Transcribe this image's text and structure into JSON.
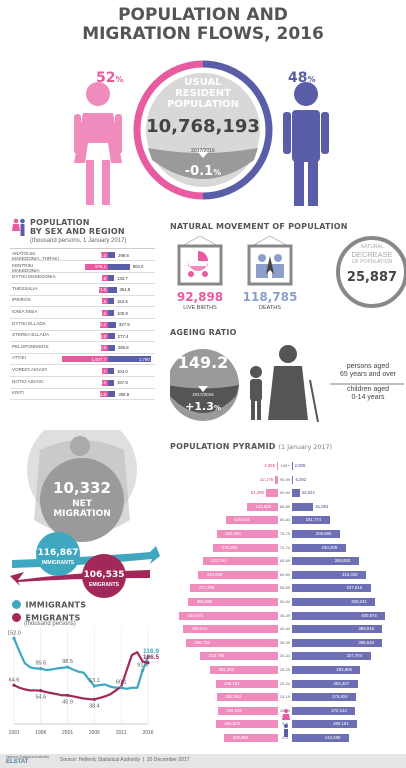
{
  "title_line1": "POPULATION AND",
  "title_line2": "MIGRATION FLOWS, 2016",
  "female_pct": "52",
  "male_pct": "48",
  "pct_sign": "%",
  "usual": {
    "line1": "USUAL",
    "line2": "RESIDENT",
    "line3": "POPULATION",
    "value": "10,768,193",
    "period": "2017/2016",
    "change": "-0.1",
    "change_unit": "%"
  },
  "sex_region": {
    "title_line1": "POPULATION",
    "title_line2": "BY SEX AND REGION",
    "subtitle": "(thousand persons, 1 January 2017)",
    "rows": [
      {
        "region": "ANATOLIKI MAKEDONIA, THRAKI",
        "female": "304.2",
        "male": "298.6",
        "f": 304.2,
        "m": 298.6
      },
      {
        "region": "KENTRIKI MAKEDONIA",
        "female": "976.1",
        "male": "904.0",
        "f": 976.1,
        "m": 904.0
      },
      {
        "region": "DYTIKI MAKEDONIA",
        "female": "137.8",
        "male": "133.7",
        "f": 137.8,
        "m": 133.7
      },
      {
        "region": "THESSALIA",
        "female": "371.5",
        "male": "354.8",
        "f": 371.5,
        "m": 354.8
      },
      {
        "region": "IPEIROS",
        "female": "171.5",
        "male": "163.5",
        "f": 171.5,
        "m": 163.5
      },
      {
        "region": "IONIA NISIA",
        "female": "104.5",
        "male": "100.9",
        "f": 104.5,
        "m": 100.9
      },
      {
        "region": "DYTIKI ELLADA",
        "female": "335.2",
        "male": "327.9",
        "f": 335.2,
        "m": 327.9
      },
      {
        "region": "STEREA ELLADA",
        "female": "278.8",
        "male": "277.4",
        "f": 278.8,
        "m": 277.4
      },
      {
        "region": "PELOPONNISOS",
        "female": "290.8",
        "male": "286.8",
        "f": 290.8,
        "m": 286.8
      },
      {
        "region": "ATTIKI",
        "female": "1,937.7",
        "male": "1,790.9",
        "f": 1937.7,
        "m": 1790.9
      },
      {
        "region": "VOREIO AIGAIO",
        "female": "95.7",
        "male": "104.0",
        "f": 95.7,
        "m": 104.0
      },
      {
        "region": "NOTIO AIGAIO",
        "female": "170.6",
        "male": "167.9",
        "f": 170.6,
        "m": 167.9
      },
      {
        "region": "KRITI",
        "female": "323.8",
        "male": "308.8",
        "f": 323.8,
        "m": 308.8
      }
    ]
  },
  "natural": {
    "title": "NATURAL MOVEMENT OF POPULATION",
    "births_value": "92,898",
    "births_label": "LIVE BIRTHS",
    "deaths_value": "118,785",
    "deaths_label": "DEATHS",
    "decrease_l1": "NATURAL",
    "decrease_l2": "DECREASE",
    "decrease_l3": "OF POPULATION",
    "decrease_value": "25,887"
  },
  "ageing": {
    "title": "AGEING RATIO",
    "value": "149.2",
    "period": "2017/2016",
    "change": "+1.3",
    "change_unit": "%",
    "top_l1": "persons aged",
    "top_l2": "65 years and over",
    "bottom_l1": "children aged",
    "bottom_l2": "0-14 years"
  },
  "net": {
    "value": "10,332",
    "label_l1": "NET",
    "label_l2": "MIGRATION",
    "immigrants_value": "116,867",
    "immigrants_label": "IMMIGRANTS",
    "emigrants_value": "106,535",
    "emigrants_label": "EMIGRANTS"
  },
  "legend": {
    "immigrants": "IMMIGRANTS",
    "emigrants": "EMIGRANTS",
    "unit": "(thousand persons)"
  },
  "colors": {
    "female": "#e85ba0",
    "male": "#5a5da8",
    "immig": "#3fa7c0",
    "emig": "#a3285a",
    "grey": "#9a9a9a"
  },
  "chart_data": {
    "type": "line",
    "x": [
      1991,
      1992,
      1993,
      1994,
      1995,
      1996,
      1997,
      1998,
      1999,
      2000,
      2001,
      2002,
      2003,
      2004,
      2005,
      2006,
      2007,
      2008,
      2009,
      2010,
      2011,
      2012,
      2013,
      2014,
      2015,
      2016
    ],
    "x_ticks": [
      "1991",
      "1996",
      "2001",
      "2006",
      "2011",
      "2016"
    ],
    "series": [
      {
        "name": "IMMIGRANTS",
        "values": [
          152.0,
          128,
          106,
          98,
          96,
          95.6,
          93,
          94,
          96,
          97,
          98.5,
          94,
          90,
          88,
          75,
          63.1,
          65,
          66,
          62,
          60,
          60.1,
          58,
          60,
          60,
          92.4,
          116.9
        ]
      },
      {
        "name": "EMIGRANTS",
        "values": [
          64.6,
          60,
          57,
          55,
          55,
          54.6,
          52,
          50,
          48,
          46,
          45.9,
          44,
          42,
          40,
          39,
          38.4,
          41,
          44,
          48,
          55,
          62,
          92,
          121,
          126,
          109,
          106.5
        ]
      }
    ],
    "labels": [
      {
        "series": "IMMIGRANTS",
        "year": 1991,
        "text": "152.0"
      },
      {
        "series": "IMMIGRANTS",
        "year": 1996,
        "text": "95.6"
      },
      {
        "series": "IMMIGRANTS",
        "year": 2001,
        "text": "98.5"
      },
      {
        "series": "IMMIGRANTS",
        "year": 2006,
        "text": "63.1"
      },
      {
        "series": "IMMIGRANTS",
        "year": 2011,
        "text": "60.1"
      },
      {
        "series": "IMMIGRANTS",
        "year": 2015,
        "text": "92.4"
      },
      {
        "series": "IMMIGRANTS",
        "year": 2016,
        "text": "116.9"
      },
      {
        "series": "EMIGRANTS",
        "year": 1991,
        "text": "64.6"
      },
      {
        "series": "EMIGRANTS",
        "year": 1996,
        "text": "54.6"
      },
      {
        "series": "EMIGRANTS",
        "year": 2001,
        "text": "45.9"
      },
      {
        "series": "EMIGRANTS",
        "year": 2006,
        "text": "38.4"
      },
      {
        "series": "EMIGRANTS",
        "year": 2016,
        "text": "106.5"
      }
    ],
    "ylim": [
      0,
      160
    ]
  },
  "pyramid": {
    "title": "POPULATION PYRAMID",
    "subtitle": "(1 January 2017)",
    "rows": [
      {
        "age": "100+",
        "female": "4,455",
        "male": "2,805",
        "f": 4455,
        "m": 2805
      },
      {
        "age": "95-99",
        "female": "12,176",
        "male": "6,292",
        "f": 12176,
        "m": 6292
      },
      {
        "age": "90-94",
        "female": "51,280",
        "male": "32,524",
        "f": 51280,
        "m": 32524
      },
      {
        "age": "85-89",
        "female": "133,808",
        "male": "91,864",
        "f": 133808,
        "m": 91864
      },
      {
        "age": "80-84",
        "female": "225,643",
        "male": "161,774",
        "f": 225643,
        "m": 161774
      },
      {
        "age": "75-79",
        "female": "263,094",
        "male": "205,680",
        "f": 263094,
        "m": 205680
      },
      {
        "age": "70-74",
        "female": "278,250",
        "male": "230,299",
        "f": 278250,
        "m": 230299
      },
      {
        "age": "65-69",
        "female": "323,764",
        "male": "286,853",
        "f": 323764,
        "m": 286853
      },
      {
        "age": "60-64",
        "female": "342,889",
        "male": "318,330",
        "f": 342889,
        "m": 318330
      },
      {
        "age": "55-59",
        "female": "377,289",
        "male": "337,815",
        "f": 377289,
        "m": 337815
      },
      {
        "age": "50-54",
        "female": "385,983",
        "male": "358,241",
        "f": 385983,
        "m": 358241
      },
      {
        "age": "45-49",
        "female": "424,570",
        "male": "400,874",
        "f": 424570,
        "m": 400874
      },
      {
        "age": "40-44",
        "female": "408,224",
        "male": "388,915",
        "f": 408224,
        "m": 388915
      },
      {
        "age": "35-39",
        "female": "396,728",
        "male": "388,648",
        "f": 396728,
        "m": 388648
      },
      {
        "age": "30-34",
        "female": "333,799",
        "male": "337,784",
        "f": 333799,
        "m": 337784
      },
      {
        "age": "25-29",
        "female": "292,302",
        "male": "293,909",
        "f": 292302,
        "m": 293909
      },
      {
        "age": "20-24",
        "female": "268,182",
        "male": "282,307",
        "f": 268182,
        "m": 282307
      },
      {
        "age": "15-19",
        "female": "262,063",
        "male": "275,824",
        "f": 262063,
        "m": 275824
      },
      {
        "age": "10-14",
        "female": "258,849",
        "male": "272,144",
        "f": 258849,
        "m": 272144
      },
      {
        "age": "5-9",
        "female": "266,829",
        "male": "280,191",
        "f": 266829,
        "m": 280191
      },
      {
        "age": "0-4",
        "female": "230,962",
        "male": "244,598",
        "f": 230962,
        "m": 244598
      }
    ]
  },
  "footer": {
    "logo_l1": "Hellenic Statistical Authority",
    "logo_l2": "ELSTAT",
    "source": "Source: Hellenic Statistical Authority",
    "date": "20 December 2017"
  }
}
